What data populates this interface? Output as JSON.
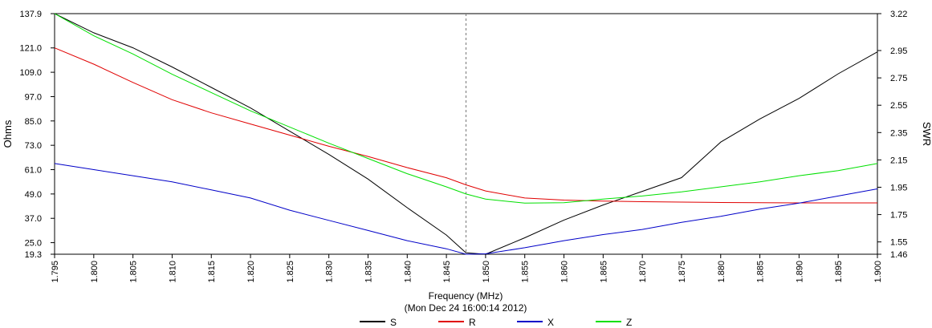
{
  "chart_data": {
    "type": "line",
    "xlabel": "Frequency (MHz)",
    "timestamp": "(Mon Dec 24 16:00:14 2012)",
    "ylabel_left": "Ohms",
    "ylabel_right": "SWR",
    "xlim": [
      1.795,
      1.9
    ],
    "ylim_left": [
      19.3,
      137.9
    ],
    "ylim_right": [
      1.46,
      3.22
    ],
    "x_ticks": [
      "1.795",
      "1.800",
      "1.805",
      "1.810",
      "1.815",
      "1.820",
      "1.825",
      "1.830",
      "1.835",
      "1.840",
      "1.845",
      "1.850",
      "1.855",
      "1.860",
      "1.865",
      "1.870",
      "1.875",
      "1.880",
      "1.885",
      "1.890",
      "1.895",
      "1.900"
    ],
    "y_left_ticks": [
      "137.9",
      "121.0",
      "109.0",
      "97.0",
      "85.0",
      "73.0",
      "61.0",
      "49.0",
      "37.0",
      "25.0",
      "19.3"
    ],
    "y_right_ticks": [
      "3.22",
      "2.95",
      "2.75",
      "2.55",
      "2.35",
      "2.15",
      "1.95",
      "1.75",
      "1.55",
      "1.46"
    ],
    "marker_x": 1.8475,
    "grid": false,
    "legend_position": "bottom-center",
    "x": [
      1.795,
      1.8,
      1.805,
      1.81,
      1.815,
      1.82,
      1.825,
      1.83,
      1.835,
      1.84,
      1.845,
      1.8475,
      1.85,
      1.855,
      1.86,
      1.865,
      1.87,
      1.875,
      1.88,
      1.885,
      1.89,
      1.895,
      1.9
    ],
    "series": [
      {
        "name": "S",
        "color": "#000000",
        "axis": "right",
        "values": [
          3.22,
          3.08,
          2.97,
          2.83,
          2.68,
          2.53,
          2.36,
          2.19,
          2.01,
          1.8,
          1.6,
          1.47,
          1.46,
          1.58,
          1.71,
          1.82,
          1.92,
          2.02,
          2.28,
          2.45,
          2.6,
          2.78,
          2.94
        ]
      },
      {
        "name": "R",
        "color": "#e00000",
        "axis": "left",
        "values": [
          121.0,
          113.0,
          104.0,
          95.5,
          89.0,
          83.5,
          78.0,
          72.5,
          67.5,
          62.0,
          57.0,
          53.5,
          50.5,
          47.0,
          46.0,
          45.5,
          45.2,
          45.0,
          44.8,
          44.7,
          44.6,
          44.6,
          44.6
        ]
      },
      {
        "name": "X",
        "color": "#0000c8",
        "axis": "left",
        "values": [
          64.0,
          61.0,
          58.0,
          55.0,
          51.0,
          47.0,
          41.0,
          36.0,
          31.0,
          26.0,
          22.0,
          19.3,
          19.5,
          22.5,
          26.0,
          29.0,
          31.5,
          35.0,
          38.0,
          41.5,
          44.5,
          48.0,
          51.5
        ]
      },
      {
        "name": "Z",
        "color": "#00e000",
        "axis": "left",
        "values": [
          137.9,
          127.0,
          118.0,
          108.0,
          99.0,
          90.0,
          82.0,
          74.0,
          66.5,
          59.0,
          52.5,
          49.0,
          46.5,
          44.5,
          44.7,
          46.5,
          48.0,
          50.0,
          52.5,
          55.0,
          58.0,
          60.5,
          64.0
        ]
      }
    ]
  }
}
